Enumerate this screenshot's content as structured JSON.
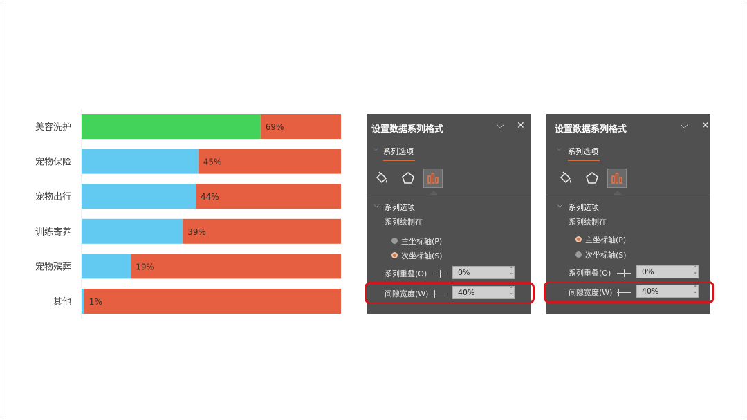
{
  "chart_data": {
    "type": "bar",
    "orientation": "horizontal",
    "stacked": true,
    "categories": [
      "美容洗护",
      "宠物保险",
      "宠物出行",
      "训练寄养",
      "宠物殡葬",
      "其他"
    ],
    "series": [
      {
        "values": [
          69,
          45,
          44,
          39,
          19,
          1
        ]
      },
      {
        "values": [
          31,
          55,
          56,
          61,
          81,
          99
        ]
      }
    ],
    "data_labels": [
      "69%",
      "45%",
      "44%",
      "39%",
      "19%",
      "1%"
    ],
    "xlim": [
      0,
      100
    ],
    "gridlines": false,
    "legend": "none"
  },
  "colors": {
    "first_bar": "#44d35a",
    "value_bars": "#62c9f1",
    "remainder": "#e55f40",
    "panel_bg": "#505050",
    "highlight": "#d3151c"
  },
  "panels": [
    {
      "title": "设置数据系列格式",
      "collapse_icon": "chevron-down-icon",
      "close_icon": "close-icon",
      "tab_label": "系列选项",
      "icons": [
        "fill-bucket-icon",
        "pentagon-icon",
        "bar-chart-icon"
      ],
      "section_header": "系列选项",
      "plot_on_label": "系列绘制在",
      "primary_axis": "主坐标轴(P)",
      "secondary_axis": "次坐标轴(S)",
      "selected_axis": "secondary",
      "overlap_label": "系列重叠(O)",
      "overlap_value": "0%",
      "gap_label": "间隙宽度(W)",
      "gap_value": "40%"
    },
    {
      "title": "设置数据系列格式",
      "collapse_icon": "chevron-down-icon",
      "close_icon": "close-icon",
      "tab_label": "系列选项",
      "icons": [
        "fill-bucket-icon",
        "pentagon-icon",
        "bar-chart-icon"
      ],
      "section_header": "系列选项",
      "plot_on_label": "系列绘制在",
      "primary_axis": "主坐标轴(P)",
      "secondary_axis": "次坐标轴(S)",
      "selected_axis": "primary",
      "overlap_label": "系列重叠(O)",
      "overlap_value": "0%",
      "gap_label": "间隙宽度(W)",
      "gap_value": "40%"
    }
  ]
}
